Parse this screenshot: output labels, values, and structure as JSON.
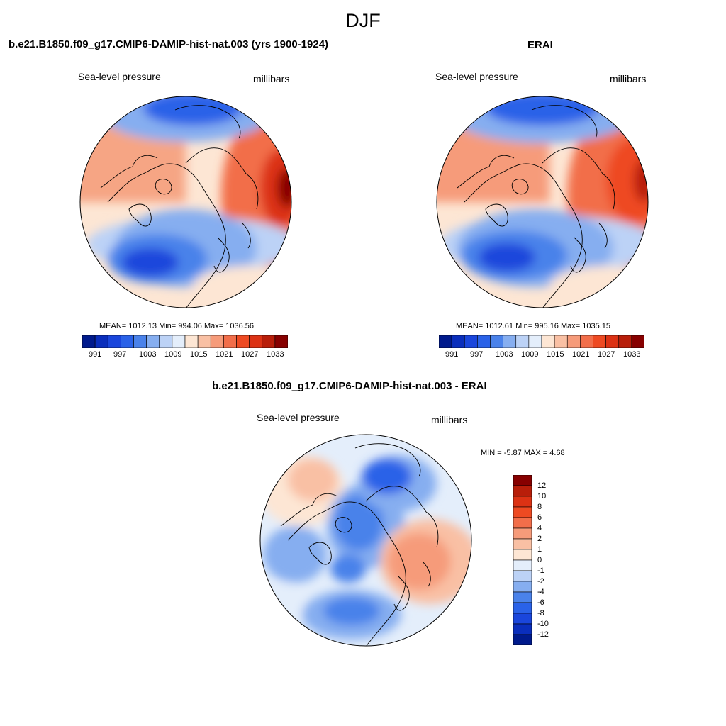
{
  "title": "DJF",
  "panels": [
    {
      "id": "model",
      "title": "b.e21.B1850.f09_g17.CMIP6-DAMIP-hist-nat.003 (yrs 1900-1924)",
      "left_label": "Sea-level pressure",
      "right_label": "millibars",
      "stats": "MEAN= 1012.13  Min= 994.06  Max= 1036.56",
      "colorbar_ticks": [
        "991",
        "997",
        "1003",
        "1009",
        "1015",
        "1021",
        "1027",
        "1033"
      ]
    },
    {
      "id": "obs",
      "title": "ERAI",
      "left_label": "Sea-level pressure",
      "right_label": "millibars",
      "stats": "MEAN= 1012.61  Min= 995.16  Max= 1035.15",
      "colorbar_ticks": [
        "991",
        "997",
        "1003",
        "1009",
        "1015",
        "1021",
        "1027",
        "1033"
      ]
    },
    {
      "id": "diff",
      "title": "b.e21.B1850.f09_g17.CMIP6-DAMIP-hist-nat.003 - ERAI",
      "left_label": "Sea-level pressure",
      "right_label": "millibars",
      "stats": "MIN =  -5.87 MAX =   4.68",
      "colorbar_ticks": [
        "12",
        "10",
        "8",
        "6",
        "4",
        "2",
        "1",
        "0",
        "-1",
        "-2",
        "-4",
        "-6",
        "-8",
        "-10",
        "-12"
      ]
    }
  ],
  "colors": {
    "abs_scale": [
      "#001a8c",
      "#0a2ebc",
      "#1a46dc",
      "#2a62e8",
      "#4a82ea",
      "#86aef0",
      "#bcd2f6",
      "#e4eefb",
      "#fde6d4",
      "#f9c0a4",
      "#f69b7a",
      "#f26e4a",
      "#ee4a22",
      "#dc3214",
      "#b81e0a",
      "#870000"
    ],
    "diff_scale": [
      "#870000",
      "#b81e0a",
      "#dc3214",
      "#ee4a22",
      "#f26e4a",
      "#f69b7a",
      "#f9c0a4",
      "#fde6d4",
      "#e4eefb",
      "#bcd2f6",
      "#86aef0",
      "#4a82ea",
      "#2a62e8",
      "#1a46dc",
      "#0a2ebc",
      "#001a8c"
    ]
  }
}
